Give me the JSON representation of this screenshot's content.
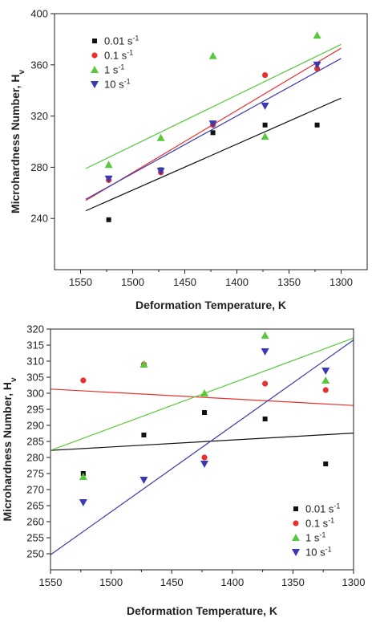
{
  "chart_data": [
    {
      "type": "scatter",
      "xlabel": "Deformation Temperature, K",
      "ylabel": "Microhardness Number, H",
      "ylabel_sub": "v",
      "xlim": [
        1575,
        1275
      ],
      "ylim": [
        200,
        400
      ],
      "xticks": [
        1550,
        1500,
        1450,
        1400,
        1350,
        1300
      ],
      "yticks": [
        240,
        280,
        320,
        360,
        400
      ],
      "legend_position": "top-left",
      "series": [
        {
          "name": "0.01 s",
          "sup": "-1",
          "marker": "square",
          "color": "#111111",
          "x": [
            1523,
            1473,
            1423,
            1373,
            1323
          ],
          "y": [
            239,
            278,
            307,
            313,
            313
          ],
          "fit": [
            [
              1545,
              246
            ],
            [
              1300,
              334
            ]
          ]
        },
        {
          "name": "0.1 s",
          "sup": "-1",
          "marker": "circle",
          "color": "#e8312f",
          "x": [
            1523,
            1473,
            1423,
            1373,
            1323
          ],
          "y": [
            270,
            276,
            313,
            352,
            357
          ],
          "fit": [
            [
              1545,
              254
            ],
            [
              1300,
              373
            ]
          ]
        },
        {
          "name": "1 s",
          "sup": "-1",
          "marker": "triangle-up",
          "color": "#5ac83c",
          "x": [
            1523,
            1473,
            1423,
            1373,
            1323
          ],
          "y": [
            282,
            303,
            367,
            304,
            383
          ],
          "fit": [
            [
              1545,
              279
            ],
            [
              1300,
              376
            ]
          ]
        },
        {
          "name": "10 s",
          "sup": "-1",
          "marker": "triangle-down",
          "color": "#3a3ab0",
          "x": [
            1523,
            1473,
            1423,
            1373,
            1323
          ],
          "y": [
            271,
            277,
            314,
            328,
            360
          ],
          "fit": [
            [
              1545,
              255
            ],
            [
              1300,
              365
            ]
          ]
        }
      ]
    },
    {
      "type": "scatter",
      "xlabel": "Deformation Temperature, K",
      "ylabel": "Microhardness Number, H",
      "ylabel_sub": "v",
      "xlim": [
        1550,
        1300
      ],
      "ylim": [
        245,
        320
      ],
      "xticks": [
        1550,
        1500,
        1450,
        1400,
        1350,
        1300
      ],
      "yticks": [
        250,
        255,
        260,
        265,
        270,
        275,
        280,
        285,
        290,
        295,
        300,
        305,
        310,
        315,
        320
      ],
      "legend_position": "bottom-right",
      "series": [
        {
          "name": "0.01 s",
          "sup": "-1",
          "marker": "square",
          "color": "#111111",
          "x": [
            1523,
            1473,
            1423,
            1373,
            1323
          ],
          "y": [
            275,
            287,
            294,
            292,
            278
          ],
          "fit": [
            [
              1550,
              282.2
            ],
            [
              1300,
              287.6
            ]
          ]
        },
        {
          "name": "0.1 s",
          "sup": "-1",
          "marker": "circle",
          "color": "#e8312f",
          "x": [
            1523,
            1473,
            1423,
            1373,
            1323
          ],
          "y": [
            304,
            309,
            280,
            303,
            301
          ],
          "fit": [
            [
              1550,
              301.3
            ],
            [
              1300,
              296.2
            ]
          ]
        },
        {
          "name": "1 s",
          "sup": "-1",
          "marker": "triangle-up",
          "color": "#5ac83c",
          "x": [
            1523,
            1473,
            1423,
            1373,
            1323
          ],
          "y": [
            274,
            309,
            300,
            318,
            304
          ],
          "fit": [
            [
              1550,
              282.2
            ],
            [
              1300,
              317.2
            ]
          ]
        },
        {
          "name": "10 s",
          "sup": "-1",
          "marker": "triangle-down",
          "color": "#3a3ab0",
          "x": [
            1523,
            1473,
            1423,
            1373,
            1323
          ],
          "y": [
            266,
            273,
            278,
            313,
            307
          ],
          "fit": [
            [
              1550,
              249.7
            ],
            [
              1300,
              316.6
            ]
          ]
        }
      ]
    }
  ]
}
